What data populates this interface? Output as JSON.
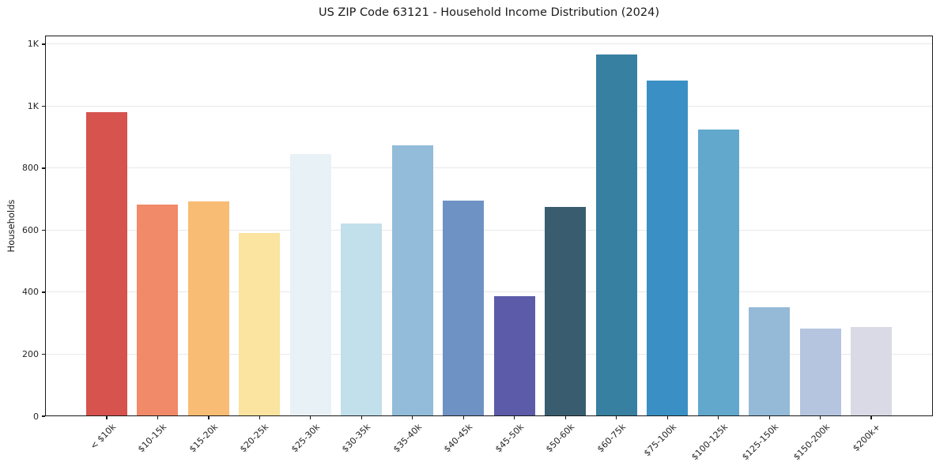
{
  "figure": {
    "background": "#ffffff"
  },
  "chart_data": {
    "type": "bar",
    "title": "US ZIP Code 63121 - Household Income Distribution (2024)",
    "ylabel": "Households",
    "xlabel": "",
    "categories": [
      "< $10k",
      "$10-15k",
      "$15-20k",
      "$20-25k",
      "$25-30k",
      "$30-35k",
      "$35-40k",
      "$40-45k",
      "$45-50k",
      "$50-60k",
      "$60-75k",
      "$75-100k",
      "$100-125k",
      "$125-150k",
      "$150-200k",
      "$200k+"
    ],
    "values": [
      980,
      682,
      692,
      590,
      845,
      622,
      873,
      695,
      387,
      674,
      1167,
      1082,
      926,
      351,
      283,
      287
    ],
    "bar_colors": [
      "#d6534e",
      "#f08a68",
      "#f9bc74",
      "#fbe3a0",
      "#e8f1f5",
      "#c1e0eb",
      "#92bcd9",
      "#6e92c4",
      "#5b5ba9",
      "#395d6f",
      "#3780a1",
      "#3a90c4",
      "#62a8cc",
      "#95bad8",
      "#b5c5e0",
      "#d9dae6"
    ],
    "ylim": [
      0,
      1228
    ],
    "yticks": [
      {
        "value": 0,
        "label": "0"
      },
      {
        "value": 200,
        "label": "200"
      },
      {
        "value": 400,
        "label": "400"
      },
      {
        "value": 600,
        "label": "600"
      },
      {
        "value": 800,
        "label": "800"
      },
      {
        "value": 1000,
        "label": "1K"
      },
      {
        "value": 1200,
        "label": "1K"
      }
    ],
    "grid": true,
    "grid_color": "#e8e8e8",
    "axis_color": "#1a1a1a",
    "tick_label_color": "#262626",
    "x_tick_rotation_deg": 45,
    "legend_position": "none"
  }
}
